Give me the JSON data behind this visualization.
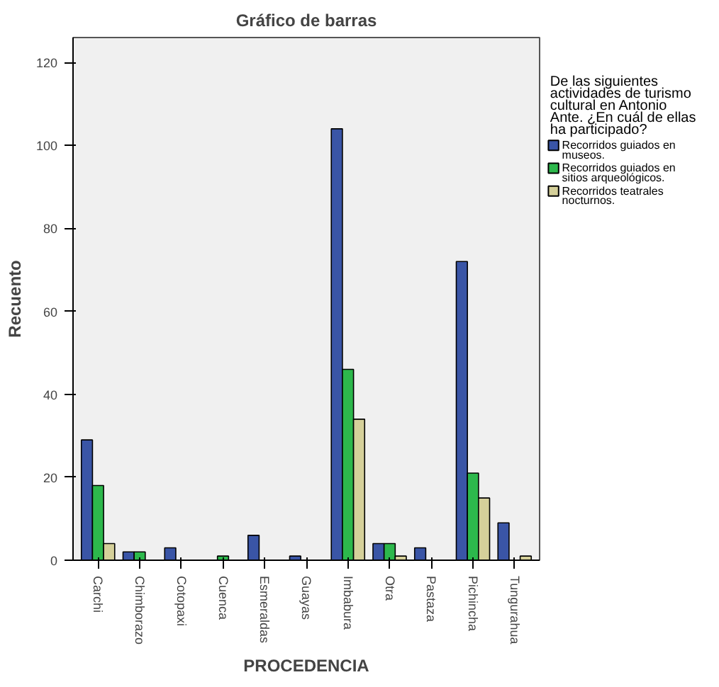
{
  "chart_data": {
    "type": "bar",
    "title": "Gráfico de barras",
    "xlabel": "PROCEDENCIA",
    "ylabel": "Recuento",
    "legend_title": "De las siguientes actividades de turismo cultural en Antonio Ante. ¿En cuál de ellas ha participado?",
    "legend": "right",
    "grid": false,
    "categories": [
      "Carchi",
      "Chimborazo",
      "Cotopaxi",
      "Cuenca",
      "Esmeraldas",
      "Guayas",
      "Imbabura",
      "Otra",
      "Pastaza",
      "Pichincha",
      "Tungurahua"
    ],
    "ylim": [
      0,
      126
    ],
    "yticks": [
      0,
      20,
      40,
      60,
      80,
      100,
      120
    ],
    "series": [
      {
        "name": "Recorridos guiados en museos.",
        "color": "#3a55a6",
        "values": [
          29,
          2,
          3,
          null,
          6,
          1,
          104,
          4,
          3,
          72,
          9
        ]
      },
      {
        "name": "Recorridos guiados en sitios arqueológicos.",
        "color": "#2db84c",
        "values": [
          18,
          2,
          null,
          1,
          null,
          null,
          46,
          4,
          null,
          21,
          null
        ]
      },
      {
        "name": "Recorridos teatrales nocturnos.",
        "color": "#d5d09a",
        "values": [
          4,
          null,
          null,
          null,
          null,
          null,
          34,
          1,
          null,
          15,
          1
        ]
      }
    ]
  }
}
